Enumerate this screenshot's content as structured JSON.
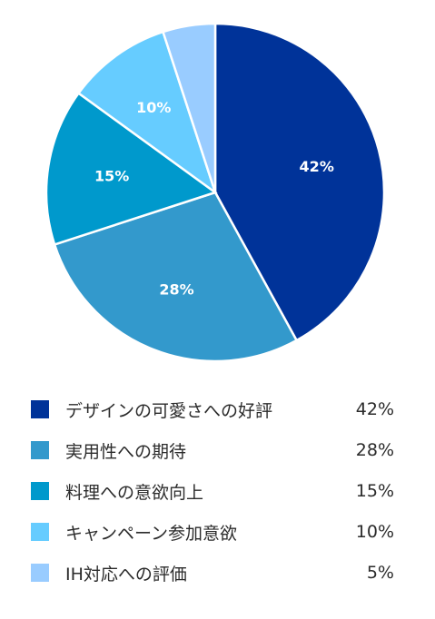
{
  "chart_data": {
    "type": "pie",
    "slices": [
      {
        "label": "デザインの可愛さへの好評",
        "value": 42,
        "display": "42%",
        "color": "#003399"
      },
      {
        "label": "実用性への期待",
        "value": 28,
        "display": "28%",
        "color": "#3399CC"
      },
      {
        "label": "料理への意欲向上",
        "value": 15,
        "display": "15%",
        "color": "#0099CC"
      },
      {
        "label": "キャンペーン参加意欲",
        "value": 10,
        "display": "10%",
        "color": "#66CCFF"
      },
      {
        "label": "IH対応への評価",
        "value": 5,
        "display": "5%",
        "color": "#99CCFF"
      }
    ],
    "legend": "bottom"
  }
}
